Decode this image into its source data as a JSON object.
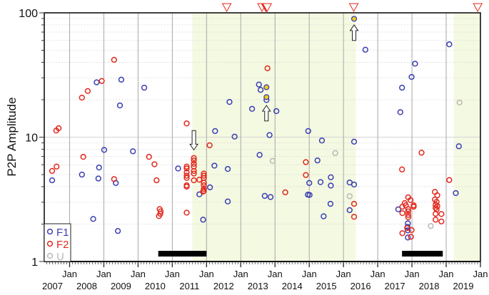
{
  "chart_data": {
    "type": "scatter",
    "title": "",
    "xlabel": "",
    "ylabel": "P2P Amplitude",
    "y_scale": "log",
    "ylim": [
      1,
      100
    ],
    "xlim": [
      2006.26,
      2019.0
    ],
    "y_ticks": [
      "1",
      "10",
      "100"
    ],
    "y_tick_values": [
      1,
      10,
      100
    ],
    "x_tick_values": [
      2007,
      2008,
      2009,
      2010,
      2011,
      2012,
      2013,
      2014,
      2015,
      2016,
      2017,
      2018,
      2019
    ],
    "x_tick_month_label": "Jan",
    "x_year_labels": [
      "2007",
      "2008",
      "2009",
      "2010",
      "2011",
      "2012",
      "2013",
      "2014",
      "2015",
      "2016",
      "2017",
      "2018",
      "2019"
    ],
    "grid": true,
    "legend_placement": "bottom-left",
    "colors": {
      "F1": "#3a3fb3",
      "F2": "#e2281d",
      "U": "#b8b8b8",
      "highlight_fill": "#f2cf17",
      "shade": "#f4f9e1",
      "bar": "#000000",
      "marker": "#e2281d"
    },
    "series": [
      {
        "name": "F1",
        "points": [
          [
            2006.49,
            4.5
          ],
          [
            2007.79,
            27.6
          ],
          [
            2008.51,
            29.0
          ],
          [
            2009.18,
            25.0
          ],
          [
            2008.47,
            18.0
          ],
          [
            2007.36,
            5.0
          ],
          [
            2007.86,
            5.7
          ],
          [
            2007.84,
            4.65
          ],
          [
            2008.01,
            7.9
          ],
          [
            2008.35,
            4.28
          ],
          [
            2007.69,
            2.2
          ],
          [
            2008.41,
            1.76
          ],
          [
            2008.85,
            7.7
          ],
          [
            2010.17,
            5.6
          ],
          [
            2010.79,
            3.47
          ],
          [
            2011.1,
            3.95
          ],
          [
            2010.9,
            2.17
          ],
          [
            2011.25,
            11.2
          ],
          [
            2011.23,
            5.9
          ],
          [
            2011.67,
            19.2
          ],
          [
            2011.82,
            10.1
          ],
          [
            2011.62,
            5.55
          ],
          [
            2011.62,
            3.04
          ],
          [
            2012.33,
            16.9
          ],
          [
            2012.53,
            26.5
          ],
          [
            2012.58,
            24.0
          ],
          [
            2012.75,
            19.9
          ],
          [
            2013.04,
            16.2
          ],
          [
            2012.84,
            10.4
          ],
          [
            2012.55,
            7.2
          ],
          [
            2012.7,
            3.37
          ],
          [
            2012.87,
            3.3
          ],
          [
            2013.97,
            11.2
          ],
          [
            2014.37,
            9.4
          ],
          [
            2014.24,
            6.5
          ],
          [
            2014.0,
            4.28
          ],
          [
            2013.96,
            3.45
          ],
          [
            2014.01,
            3.43
          ],
          [
            2014.33,
            4.35
          ],
          [
            2014.63,
            4.76
          ],
          [
            2014.63,
            4.08
          ],
          [
            2014.62,
            2.91
          ],
          [
            2014.42,
            2.31
          ],
          [
            2015.18,
            4.32
          ],
          [
            2015.31,
            4.16
          ],
          [
            2015.18,
            2.59
          ],
          [
            2015.31,
            9.2
          ],
          [
            2015.64,
            50.5
          ],
          [
            2017.09,
            39.0
          ],
          [
            2016.99,
            30.5
          ],
          [
            2016.71,
            25.0
          ],
          [
            2016.66,
            15.9
          ],
          [
            2016.6,
            2.63
          ],
          [
            2016.88,
            2.03
          ],
          [
            2016.87,
            1.9
          ],
          [
            2016.88,
            1.56
          ],
          [
            2016.88,
            1.78
          ],
          [
            2018.09,
            55.8
          ],
          [
            2018.37,
            8.45
          ],
          [
            2018.28,
            3.55
          ]
        ]
      },
      {
        "name": "F2",
        "points": [
          [
            2006.61,
            11.3
          ],
          [
            2006.68,
            11.8
          ],
          [
            2006.49,
            5.35
          ],
          [
            2006.62,
            5.8
          ],
          [
            2007.36,
            20.8
          ],
          [
            2007.53,
            23.5
          ],
          [
            2007.94,
            28.3
          ],
          [
            2008.3,
            41.9
          ],
          [
            2007.4,
            6.95
          ],
          [
            2008.3,
            4.6
          ],
          [
            2009.32,
            6.95
          ],
          [
            2009.48,
            6.05
          ],
          [
            2009.54,
            4.5
          ],
          [
            2009.63,
            2.64
          ],
          [
            2009.66,
            2.53
          ],
          [
            2009.61,
            2.32
          ],
          [
            2009.65,
            2.42
          ],
          [
            2010.42,
            12.9
          ],
          [
            2010.42,
            5.8
          ],
          [
            2010.42,
            5.6
          ],
          [
            2010.42,
            5.2
          ],
          [
            2010.42,
            4.9
          ],
          [
            2010.42,
            4.7
          ],
          [
            2010.42,
            4.1
          ],
          [
            2010.42,
            4.0
          ],
          [
            2010.42,
            2.47
          ],
          [
            2010.63,
            6.8
          ],
          [
            2010.63,
            6.5
          ],
          [
            2010.63,
            6.1
          ],
          [
            2010.63,
            5.8
          ],
          [
            2010.63,
            5.35
          ],
          [
            2010.63,
            5.1
          ],
          [
            2010.63,
            4.5
          ],
          [
            2010.79,
            4.55
          ],
          [
            2010.92,
            5.1
          ],
          [
            2010.92,
            4.9
          ],
          [
            2010.92,
            4.7
          ],
          [
            2010.92,
            4.3
          ],
          [
            2010.92,
            4.1
          ],
          [
            2010.92,
            3.84
          ],
          [
            2010.92,
            3.7
          ],
          [
            2010.9,
            3.65
          ],
          [
            2011.09,
            8.6
          ],
          [
            2012.78,
            35.8
          ],
          [
            2013.3,
            3.6
          ],
          [
            2013.9,
            6.3
          ],
          [
            2013.9,
            4.96
          ],
          [
            2015.31,
            2.91
          ],
          [
            2015.31,
            2.29
          ],
          [
            2016.71,
            5.5
          ],
          [
            2017.28,
            7.5
          ],
          [
            2016.89,
            3.28
          ],
          [
            2016.96,
            3.12
          ],
          [
            2016.79,
            2.95
          ],
          [
            2016.72,
            2.76
          ],
          [
            2016.82,
            2.83
          ],
          [
            2017.05,
            2.83
          ],
          [
            2017.05,
            2.76
          ],
          [
            2016.89,
            2.64
          ],
          [
            2016.89,
            2.53
          ],
          [
            2016.72,
            2.45
          ],
          [
            2016.89,
            2.37
          ],
          [
            2016.89,
            2.27
          ],
          [
            2016.99,
            1.79
          ],
          [
            2016.72,
            1.69
          ],
          [
            2016.97,
            1.58
          ],
          [
            2016.86,
            1.86
          ],
          [
            2017.67,
            3.63
          ],
          [
            2017.74,
            3.41
          ],
          [
            2017.67,
            3.15
          ],
          [
            2017.72,
            3.02
          ],
          [
            2017.69,
            2.86
          ],
          [
            2017.74,
            2.79
          ],
          [
            2017.69,
            2.7
          ],
          [
            2017.72,
            2.62
          ],
          [
            2017.69,
            2.42
          ],
          [
            2017.86,
            2.41
          ],
          [
            2017.69,
            2.17
          ],
          [
            2017.86,
            2.1
          ],
          [
            2018.09,
            4.52
          ]
        ]
      },
      {
        "name": "U",
        "points": [
          [
            2012.93,
            6.45
          ],
          [
            2014.76,
            7.45
          ],
          [
            2015.18,
            3.35
          ],
          [
            2017.55,
            1.93
          ],
          [
            2018.39,
            19.0
          ]
        ]
      }
    ],
    "highlighted_points": [
      [
        2012.75,
        25.2
      ],
      [
        2012.75,
        21.0
      ],
      [
        2015.31,
        89.5
      ]
    ],
    "shaded_intervals": [
      [
        2010.58,
        2015.36
      ],
      [
        2018.22,
        2019.0
      ]
    ],
    "black_bars": [
      [
        2009.59,
        2011.0
      ],
      [
        2016.71,
        2017.9
      ]
    ],
    "top_triangle_markers": [
      2011.59,
      2012.62,
      2012.73,
      2012.75,
      2012.77,
      2015.3,
      2018.92
    ],
    "arrows": [
      {
        "x": 2010.63,
        "direction": "down",
        "from": 11.3,
        "to": 7.9
      },
      {
        "x": 2012.75,
        "direction": "up",
        "from": 13.5,
        "to": 18.0
      },
      {
        "x": 2015.31,
        "direction": "up",
        "from": 60,
        "to": 80
      }
    ],
    "legend": [
      "F1",
      "F2",
      "U"
    ]
  }
}
